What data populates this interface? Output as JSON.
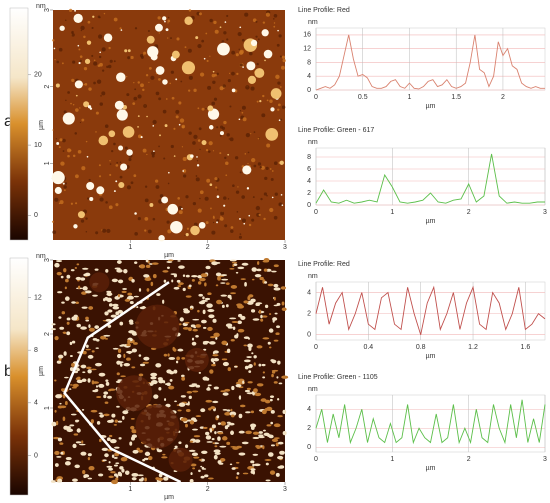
{
  "panel_labels": [
    "a",
    "b"
  ],
  "chart_data": [
    {
      "type": "colorbar",
      "label": "nm",
      "ylim": [
        -3.5,
        29.5
      ],
      "yticks": [
        0,
        10,
        20
      ]
    },
    {
      "type": "image",
      "xlim": [
        0,
        3
      ],
      "ylim": [
        0,
        3
      ],
      "xticks": [
        1,
        2,
        3
      ],
      "yticks": [
        1,
        2,
        3
      ],
      "xlabel": "µm",
      "ylabel": "µm"
    },
    {
      "type": "line",
      "title": "Line Profile: Red",
      "ylabel": "nm",
      "xlabel": "µm",
      "color": "#d9826f",
      "grid": true,
      "xlim": [
        0,
        2.45
      ],
      "ylim": [
        0,
        18
      ],
      "xticks": [
        0,
        0.5,
        1,
        1.5,
        2
      ],
      "yticks": [
        0,
        4,
        8,
        12,
        16
      ],
      "x": [
        0,
        0.05,
        0.1,
        0.15,
        0.2,
        0.25,
        0.3,
        0.35,
        0.4,
        0.45,
        0.5,
        0.55,
        0.6,
        0.65,
        0.7,
        0.75,
        0.8,
        0.85,
        0.9,
        0.95,
        1,
        1.05,
        1.1,
        1.15,
        1.2,
        1.25,
        1.3,
        1.35,
        1.4,
        1.45,
        1.5,
        1.55,
        1.6,
        1.65,
        1.7,
        1.75,
        1.8,
        1.85,
        1.9,
        1.95,
        2,
        2.05,
        2.1,
        2.15,
        2.2,
        2.25,
        2.3,
        2.35,
        2.4,
        2.45
      ],
      "values": [
        0,
        0.5,
        1,
        0.5,
        1.5,
        4,
        10,
        16,
        9,
        4,
        4.5,
        3.5,
        1,
        0.5,
        0.5,
        1,
        2.5,
        3,
        1,
        0.5,
        2,
        0.5,
        0.3,
        1,
        2.5,
        3,
        1,
        1.5,
        3,
        1,
        0.5,
        1,
        2,
        8,
        16,
        6,
        5,
        1,
        4,
        14,
        10,
        12,
        7,
        6,
        2,
        1,
        0.5,
        1,
        0.5,
        0.5
      ]
    },
    {
      "type": "line",
      "title": "Line Profile: Green - 617",
      "ylabel": "nm",
      "xlabel": "µm",
      "color": "#5cbf4a",
      "grid": true,
      "xlim": [
        0,
        3
      ],
      "ylim": [
        0,
        9.5
      ],
      "xticks": [
        0,
        1,
        2,
        3
      ],
      "yticks": [
        0,
        2,
        4,
        6,
        8
      ],
      "x": [
        0,
        0.1,
        0.2,
        0.3,
        0.4,
        0.5,
        0.6,
        0.7,
        0.8,
        0.9,
        1,
        1.1,
        1.2,
        1.3,
        1.4,
        1.5,
        1.6,
        1.7,
        1.8,
        1.9,
        2,
        2.1,
        2.2,
        2.3,
        2.4,
        2.5,
        2.6,
        2.7,
        2.8,
        2.9,
        3
      ],
      "values": [
        0.3,
        2.5,
        0.5,
        0.3,
        0.8,
        0.3,
        0.5,
        0.8,
        0.5,
        5,
        3,
        0.5,
        0.3,
        0.5,
        0.8,
        2,
        0.5,
        0.3,
        0.8,
        1,
        3.5,
        0.5,
        1.5,
        8.5,
        1.5,
        0.3,
        0.5,
        0.3,
        0.3,
        0.5,
        0.5
      ]
    },
    {
      "type": "colorbar",
      "label": "nm",
      "ylim": [
        -3,
        15
      ],
      "yticks": [
        0,
        4,
        8,
        12
      ]
    },
    {
      "type": "image",
      "xlim": [
        0,
        3
      ],
      "ylim": [
        0,
        3
      ],
      "xticks": [
        1,
        2,
        3
      ],
      "yticks": [
        1,
        2,
        3
      ],
      "xlabel": "µm",
      "ylabel": "µm"
    },
    {
      "type": "line",
      "title": "Line Profile: Red",
      "ylabel": "nm",
      "xlabel": "µm",
      "color": "#c0504d",
      "grid": true,
      "xlim": [
        0,
        1.75
      ],
      "ylim": [
        -0.5,
        5
      ],
      "xticks": [
        0,
        0.4,
        0.8,
        1.2,
        1.6
      ],
      "yticks": [
        0,
        2,
        4
      ],
      "x": [
        0,
        0.05,
        0.1,
        0.15,
        0.2,
        0.25,
        0.3,
        0.35,
        0.4,
        0.45,
        0.5,
        0.55,
        0.6,
        0.65,
        0.7,
        0.75,
        0.8,
        0.85,
        0.9,
        0.95,
        1,
        1.05,
        1.1,
        1.15,
        1.2,
        1.25,
        1.3,
        1.35,
        1.4,
        1.45,
        1.5,
        1.55,
        1.6,
        1.65,
        1.7,
        1.75
      ],
      "values": [
        2,
        4.5,
        1,
        3,
        4,
        0.5,
        2,
        4,
        1,
        0.5,
        3.5,
        4,
        1,
        0.5,
        4.5,
        2,
        0,
        3,
        4.5,
        0.5,
        2,
        4,
        0.5,
        3,
        4.5,
        1,
        0.5,
        4,
        3,
        0.5,
        2,
        4.5,
        0.5,
        1,
        2,
        1.5
      ]
    },
    {
      "type": "line",
      "title": "Line Profile: Green - 1105",
      "ylabel": "nm",
      "xlabel": "µm",
      "color": "#5cbf4a",
      "grid": true,
      "xlim": [
        0,
        3
      ],
      "ylim": [
        -0.5,
        5.5
      ],
      "xticks": [
        0,
        1,
        2,
        3
      ],
      "yticks": [
        0,
        2,
        4
      ],
      "x": [
        0,
        0.075,
        0.15,
        0.225,
        0.3,
        0.375,
        0.45,
        0.525,
        0.6,
        0.675,
        0.75,
        0.825,
        0.9,
        0.975,
        1.05,
        1.125,
        1.2,
        1.275,
        1.35,
        1.425,
        1.5,
        1.575,
        1.65,
        1.725,
        1.8,
        1.875,
        1.95,
        2.025,
        2.1,
        2.175,
        2.25,
        2.325,
        2.4,
        2.475,
        2.55,
        2.625,
        2.7,
        2.775,
        2.85,
        2.925,
        3
      ],
      "values": [
        2,
        4,
        0.5,
        3.5,
        1,
        4.5,
        0.5,
        2,
        4,
        0.5,
        3,
        1,
        0.5,
        2.5,
        0.5,
        1,
        4.5,
        0.5,
        2,
        1,
        0.5,
        3.5,
        0.5,
        1,
        4.5,
        0.5,
        2,
        0.5,
        4,
        1,
        0.5,
        4.5,
        2,
        0.5,
        4.5,
        1,
        5,
        0.5,
        3,
        0.5,
        4.5
      ]
    }
  ]
}
